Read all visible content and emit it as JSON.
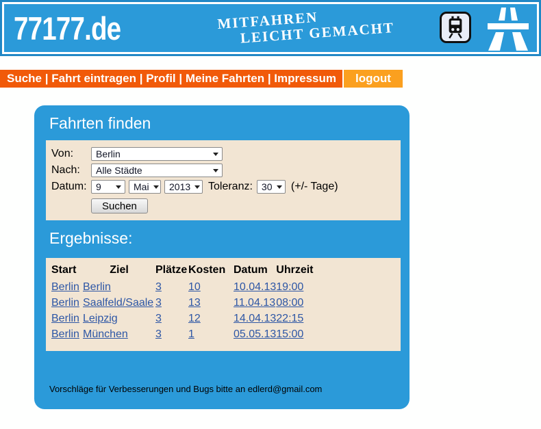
{
  "banner": {
    "logo": "77177.de",
    "slogan_line1": "MITFAHREN",
    "slogan_line2": "LEICHT GEMACHT"
  },
  "nav": {
    "items": [
      "Suche",
      "Fahrt eintragen",
      "Profil",
      "Meine Fahrten",
      "Impressum"
    ],
    "separator": "|",
    "logout_label": "logout"
  },
  "panel": {
    "title": "Fahrten finden",
    "form": {
      "von_label": "Von:",
      "von_value": "Berlin",
      "nach_label": "Nach:",
      "nach_value": "Alle Städte",
      "datum_label": "Datum:",
      "day_value": "9",
      "month_value": "Mai",
      "year_value": "2013",
      "toleranz_label": "Toleranz:",
      "toleranz_value": "30",
      "toleranz_suffix": "(+/- Tage)",
      "submit_label": "Suchen"
    },
    "results_title": "Ergebnisse:",
    "table": {
      "headers": [
        "Start",
        "Ziel",
        "Plätze",
        "Kosten",
        "Datum",
        "Uhrzeit"
      ],
      "rows": [
        {
          "start": "Berlin",
          "ziel": "Berlin",
          "plaetze": "3",
          "kosten": "10",
          "datum": "10.04.13",
          "uhrzeit": "19:00"
        },
        {
          "start": "Berlin",
          "ziel": "Saalfeld/Saale",
          "plaetze": "3",
          "kosten": "13",
          "datum": "11.04.13",
          "uhrzeit": "08:00"
        },
        {
          "start": "Berlin",
          "ziel": "Leipzig",
          "plaetze": "3",
          "kosten": "12",
          "datum": "14.04.13",
          "uhrzeit": "22:15"
        },
        {
          "start": "Berlin",
          "ziel": "München",
          "plaetze": "3",
          "kosten": "1",
          "datum": "05.05.13",
          "uhrzeit": "15:00"
        }
      ]
    },
    "footer": "Vorschläge für Verbesserungen und Bugs bitte an edlerd@gmail.com"
  },
  "colors": {
    "banner_blue": "#2b9ad9",
    "banner_ring_blue": "#2187c5",
    "nav_orange": "#f15a09",
    "logout_orange": "#fba01f",
    "box_beige": "#f2e5d3",
    "link_blue": "#2d56a5"
  }
}
